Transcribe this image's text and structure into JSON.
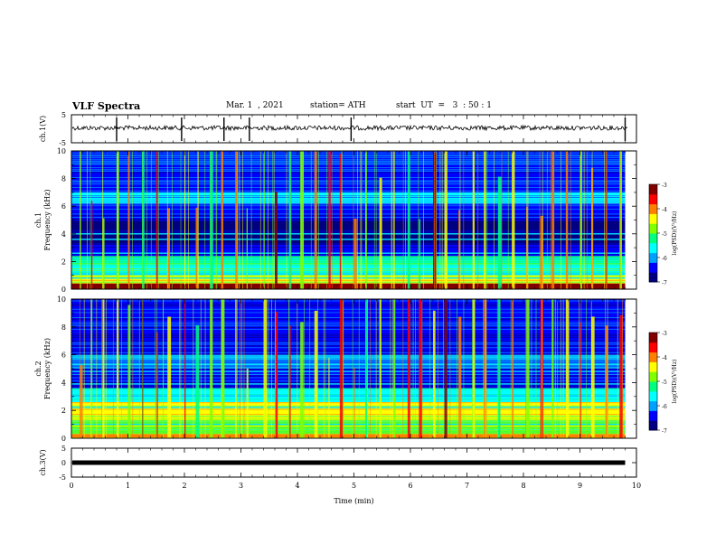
{
  "header": {
    "title": "VLF Spectra",
    "date": "Mar. 1  , 2021",
    "station": "station= ATH",
    "start": "start  UT  =   3  : 50 : 1"
  },
  "chart_data": [
    {
      "type": "line",
      "name": "ch1-waveform",
      "ylabel": "ch.1(V)",
      "ylim": [
        -5,
        5
      ],
      "yticks": [
        "5",
        "-5"
      ],
      "xlim": [
        0,
        10
      ],
      "waveform": "noisy baseline near 0.5 V with impulsive spikes",
      "baseline_v": 0.3,
      "spike_times_min": [
        0.8,
        1.95,
        2.7,
        3.15,
        4.95,
        9.8
      ]
    },
    {
      "type": "heatmap",
      "name": "ch1-spectrogram",
      "ylabel": "ch.1\nFrequency (kHz)",
      "ylim": [
        0,
        10
      ],
      "yticks": [
        "0",
        "2",
        "4",
        "6",
        "8",
        "10"
      ],
      "xlim": [
        0,
        9.8
      ],
      "colorbar": {
        "label": "log(PSD)(V²/Hz)",
        "range": [
          -7,
          -3
        ],
        "ticks": [
          "-3",
          "-4",
          "-5",
          "-6",
          "-7"
        ]
      },
      "bands_khz": [
        {
          "range": [
            0,
            0.4
          ],
          "level": -3.4
        },
        {
          "range": [
            0.4,
            1.0
          ],
          "level": -4.6
        },
        {
          "range": [
            1.0,
            1.8
          ],
          "level": -5.4
        },
        {
          "range": [
            1.8,
            2.4
          ],
          "level": -5.2
        },
        {
          "range": [
            2.4,
            3.2
          ],
          "level": -6.3
        },
        {
          "range": [
            3.2,
            5.0
          ],
          "level": -6.9
        },
        {
          "range": [
            5.0,
            6.2
          ],
          "level": -6.5
        },
        {
          "range": [
            6.2,
            7.0
          ],
          "level": -5.8
        },
        {
          "range": [
            7.0,
            10.0
          ],
          "level": -6.2
        }
      ],
      "narrowband_lines_khz": [
        0.8,
        2.2,
        2.6,
        3.6,
        4.0,
        6.5,
        6.7
      ],
      "sferic_times_min": [
        0.15,
        0.35,
        0.55,
        0.8,
        1.0,
        1.25,
        1.5,
        1.7,
        2.0,
        2.2,
        2.45,
        2.65,
        2.9,
        3.1,
        3.4,
        3.6,
        3.85,
        4.05,
        4.3,
        4.55,
        4.75,
        5.0,
        5.2,
        5.45,
        5.7,
        5.95,
        6.15,
        6.4,
        6.6,
        6.85,
        7.1,
        7.3,
        7.55,
        7.8,
        8.05,
        8.3,
        8.5,
        8.75,
        9.0,
        9.2,
        9.45,
        9.7
      ]
    },
    {
      "type": "heatmap",
      "name": "ch2-spectrogram",
      "ylabel": "ch.2\nFrequency (kHz)",
      "ylim": [
        0,
        10
      ],
      "yticks": [
        "0",
        "2",
        "4",
        "6",
        "8",
        "10"
      ],
      "xlim": [
        0,
        9.8
      ],
      "colorbar": {
        "label": "log(PSD)(V²/Hz)",
        "range": [
          -7,
          -3
        ],
        "ticks": [
          "-3",
          "-4",
          "-5",
          "-6",
          "-7"
        ]
      },
      "bands_khz": [
        {
          "range": [
            0,
            0.3
          ],
          "level": -4.2
        },
        {
          "range": [
            0.3,
            1.4
          ],
          "level": -5.0
        },
        {
          "range": [
            1.4,
            2.6
          ],
          "level": -4.6
        },
        {
          "range": [
            2.6,
            3.6
          ],
          "level": -5.6
        },
        {
          "range": [
            3.6,
            5.0
          ],
          "level": -6.3
        },
        {
          "range": [
            5.0,
            6.0
          ],
          "level": -6.0
        },
        {
          "range": [
            6.0,
            10.0
          ],
          "level": -6.4
        }
      ],
      "narrowband_lines_khz": [
        1.0,
        2.2,
        3.1,
        3.9,
        4.8,
        5.3
      ],
      "sferic_times_min": [
        0.15,
        0.35,
        0.55,
        0.8,
        1.0,
        1.25,
        1.5,
        1.7,
        2.0,
        2.2,
        2.45,
        2.65,
        2.9,
        3.1,
        3.4,
        3.6,
        3.85,
        4.05,
        4.3,
        4.55,
        4.75,
        5.0,
        5.2,
        5.45,
        5.7,
        5.95,
        6.15,
        6.4,
        6.6,
        6.85,
        7.1,
        7.3,
        7.55,
        7.8,
        8.05,
        8.3,
        8.5,
        8.75,
        9.0,
        9.2,
        9.45,
        9.7
      ]
    },
    {
      "type": "line",
      "name": "ch3-waveform",
      "ylabel": "ch.3(V)",
      "ylim": [
        -5,
        5
      ],
      "yticks": [
        "5",
        "0",
        "-5"
      ],
      "xlim": [
        0,
        10
      ],
      "constant_value_v": 0.0,
      "xlabel": "Time  (min)",
      "xticks": [
        "0",
        "1",
        "2",
        "3",
        "4",
        "5",
        "6",
        "7",
        "8",
        "9",
        "10"
      ]
    }
  ],
  "colors": {
    "colormap": [
      "#000080",
      "#0000ff",
      "#00a0ff",
      "#00ffff",
      "#00ff80",
      "#80ff00",
      "#ffff00",
      "#ff8000",
      "#ff0000",
      "#800000"
    ]
  }
}
